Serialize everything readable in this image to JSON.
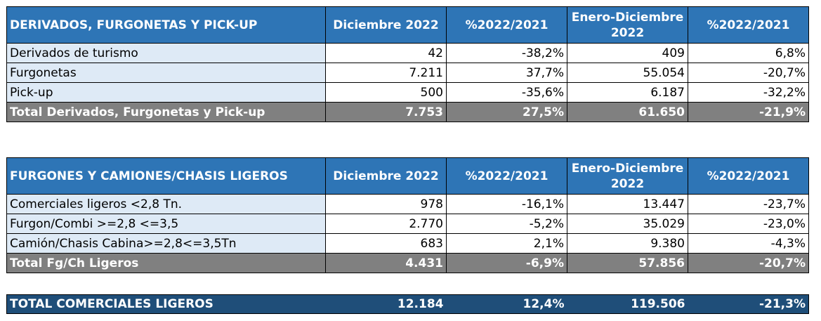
{
  "columns": {
    "col2": "Diciembre 2022",
    "col3": "%2022/2021",
    "col4": "Enero-Diciembre 2022",
    "col5": "%2022/2021"
  },
  "table1": {
    "title": "DERIVADOS, FURGONETAS Y PICK-UP",
    "rows": [
      {
        "label": "Derivados de turismo",
        "dic": "42",
        "pct1": "-38,2%",
        "ene_dic": "409",
        "pct2": "6,8%"
      },
      {
        "label": "Furgonetas",
        "dic": "7.211",
        "pct1": "37,7%",
        "ene_dic": "55.054",
        "pct2": "-20,7%"
      },
      {
        "label": "Pick-up",
        "dic": "500",
        "pct1": "-35,6%",
        "ene_dic": "6.187",
        "pct2": "-32,2%"
      }
    ],
    "total": {
      "label": "Total Derivados, Furgonetas y Pick-up",
      "dic": "7.753",
      "pct1": "27,5%",
      "ene_dic": "61.650",
      "pct2": "-21,9%"
    }
  },
  "table2": {
    "title": "FURGONES Y CAMIONES/CHASIS LIGEROS",
    "rows": [
      {
        "label": "Comerciales ligeros <2,8 Tn.",
        "dic": "978",
        "pct1": "-16,1%",
        "ene_dic": "13.447",
        "pct2": "-23,7%"
      },
      {
        "label": "Furgon/Combi >=2,8 <=3,5",
        "dic": "2.770",
        "pct1": "-5,2%",
        "ene_dic": "35.029",
        "pct2": "-23,0%"
      },
      {
        "label": "Camión/Chasis Cabina>=2,8<=3,5Tn",
        "dic": "683",
        "pct1": "2,1%",
        "ene_dic": "9.380",
        "pct2": "-4,3%"
      }
    ],
    "total": {
      "label": "Total Fg/Ch Ligeros",
      "dic": "4.431",
      "pct1": "-6,9%",
      "ene_dic": "57.856",
      "pct2": "-20,7%"
    }
  },
  "grand_total": {
    "label": "TOTAL COMERCIALES LIGEROS",
    "dic": "12.184",
    "pct1": "12,4%",
    "ene_dic": "119.506",
    "pct2": "-21,3%"
  }
}
